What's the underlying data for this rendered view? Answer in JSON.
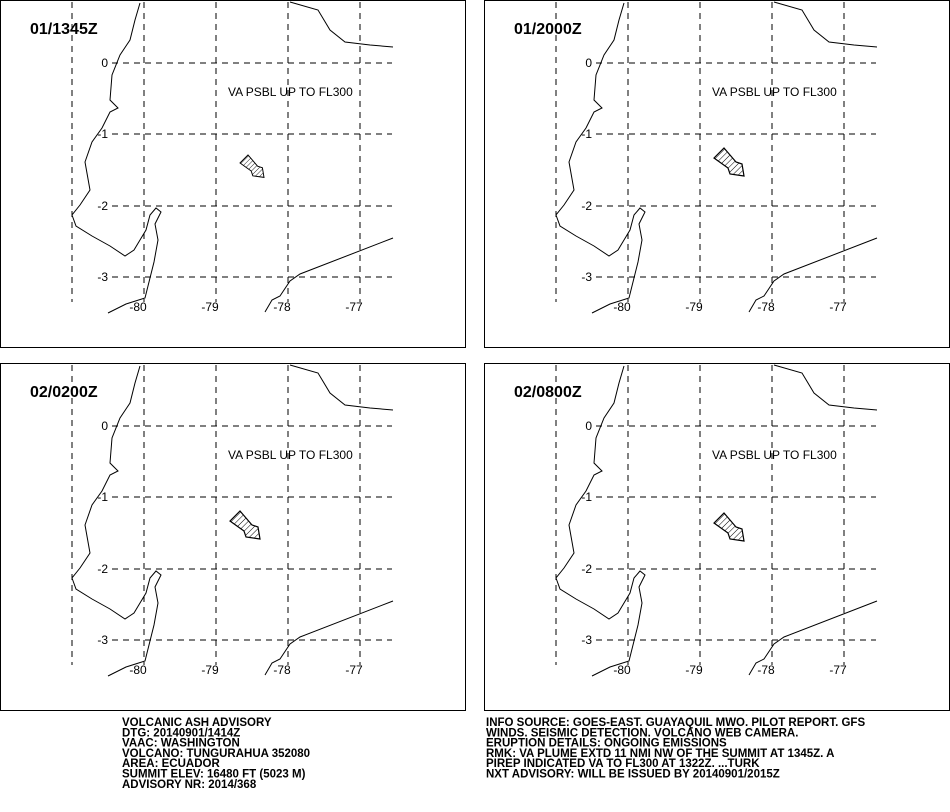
{
  "panels": [
    {
      "time": "01/1345Z",
      "label": "VA PSBL UP TO FL300"
    },
    {
      "time": "01/2000Z",
      "label": "VA PSBL UP TO FL300"
    },
    {
      "time": "02/0200Z",
      "label": "VA PSBL UP TO FL300"
    },
    {
      "time": "02/0800Z",
      "label": "VA PSBL UP TO FL300"
    }
  ],
  "lat_labels": [
    "0",
    "-1",
    "-2",
    "-3"
  ],
  "lon_labels": [
    "-80",
    "-79",
    "-78",
    "-77"
  ],
  "advisory_left": [
    "VOLCANIC ASH ADVISORY",
    "DTG: 20140901/1414Z",
    "VAAC: WASHINGTON",
    "VOLCANO: TUNGURAHUA 352080",
    "AREA: ECUADOR",
    "SUMMIT ELEV: 16480 FT (5023 M)",
    "ADVISORY NR: 2014/368"
  ],
  "advisory_right": [
    "INFO SOURCE: GOES-EAST. GUAYAQUIL MWO. PILOT REPORT. GFS",
    "WINDS. SEISMIC DETECTION. VOLCANO WEB CAMERA.",
    "ERUPTION DETAILS: ONGOING EMISSIONS",
    "RMK: VA PLUME EXTD 11 NMI NW OF THE SUMMIT AT 1345Z. A",
    "PIREP INDICATED VA TO FL300 AT 1322Z. ...TURK",
    "NXT ADVISORY: WILL BE ISSUED BY 20140901/2015Z"
  ]
}
